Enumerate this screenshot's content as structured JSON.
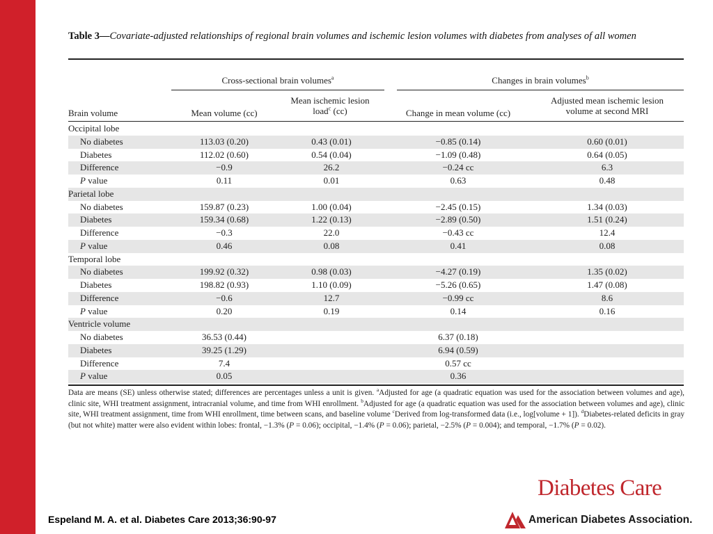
{
  "slide": {
    "accent_color": "#d0202a"
  },
  "table": {
    "title_lead": "Table 3",
    "title_dash": "—",
    "title_text": "Covariate-adjusted relationships of regional brain volumes and ischemic lesion volumes with diabetes from analyses of all women",
    "group_headers": {
      "cross_sectional": "Cross-sectional brain volumes",
      "cross_sectional_sup": "a",
      "changes": "Changes in brain volumes",
      "changes_sup": "b"
    },
    "column_headers": {
      "col1": "Brain volume",
      "col2": "Mean volume (cc)",
      "col3_line1": "Mean ischemic lesion",
      "col3_line2a": "load",
      "col3_sup": "c",
      "col3_line2b": " (cc)",
      "col4": "Change in mean volume (cc)",
      "col5_line1": "Adjusted mean ischemic lesion",
      "col5_line2": "volume at second MRI"
    },
    "rows": [
      {
        "label": "Occipital lobe",
        "section": true
      },
      {
        "label": "No diabetes",
        "c2": "113.03 (0.20)",
        "c3": "0.43 (0.01)",
        "c4": "−0.85 (0.14)",
        "c5": "0.60 (0.01)"
      },
      {
        "label": "Diabetes",
        "c2": "112.02 (0.60)",
        "c3": "0.54 (0.04)",
        "c4": "−1.09 (0.48)",
        "c5": "0.64 (0.05)"
      },
      {
        "label": "Difference",
        "c2": "−0.9",
        "c3": "26.2",
        "c4": "−0.24 cc",
        "c5": "6.3"
      },
      {
        "label": "value",
        "label_prefix": "P",
        "c2": "0.11",
        "c3": "0.01",
        "c4": "0.63",
        "c5": "0.48"
      },
      {
        "label": "Parietal lobe",
        "section": true
      },
      {
        "label": "No diabetes",
        "c2": "159.87 (0.23)",
        "c3": "1.00 (0.04)",
        "c4": "−2.45 (0.15)",
        "c5": "1.34 (0.03)"
      },
      {
        "label": "Diabetes",
        "c2": "159.34 (0.68)",
        "c3": "1.22 (0.13)",
        "c4": "−2.89 (0.50)",
        "c5": "1.51 (0.24)"
      },
      {
        "label": "Difference",
        "c2": "−0.3",
        "c3": "22.0",
        "c4": "−0.43 cc",
        "c5": "12.4"
      },
      {
        "label": "value",
        "label_prefix": "P",
        "c2": "0.46",
        "c3": "0.08",
        "c4": "0.41",
        "c5": "0.08"
      },
      {
        "label": "Temporal lobe",
        "section": true
      },
      {
        "label": "No diabetes",
        "c2": "199.92 (0.32)",
        "c3": "0.98 (0.03)",
        "c4": "−4.27 (0.19)",
        "c5": "1.35 (0.02)"
      },
      {
        "label": "Diabetes",
        "c2": "198.82 (0.93)",
        "c3": "1.10 (0.09)",
        "c4": "−5.26 (0.65)",
        "c5": "1.47 (0.08)"
      },
      {
        "label": "Difference",
        "c2": "−0.6",
        "c3": "12.7",
        "c4": "−0.99 cc",
        "c5": "8.6"
      },
      {
        "label": "value",
        "label_prefix": "P",
        "c2": "0.20",
        "c3": "0.19",
        "c4": "0.14",
        "c5": "0.16"
      },
      {
        "label": "Ventricle volume",
        "section": true
      },
      {
        "label": "No diabetes",
        "c2": "36.53 (0.44)",
        "c3": "",
        "c4": "6.37 (0.18)",
        "c5": ""
      },
      {
        "label": "Diabetes",
        "c2": "39.25 (1.29)",
        "c3": "",
        "c4": "6.94 (0.59)",
        "c5": ""
      },
      {
        "label": "Difference",
        "c2": "7.4",
        "c3": "",
        "c4": "0.57 cc",
        "c5": ""
      },
      {
        "label": "value",
        "label_prefix": "P",
        "c2": "0.05",
        "c3": "",
        "c4": "0.36",
        "c5": ""
      }
    ],
    "footnote": {
      "p1": "Data are means (SE) unless otherwise stated; differences are percentages unless a unit is given. ",
      "sup_a": "a",
      "p2": "Adjusted for age (a quadratic equation was used for the association between volumes and age), clinic site, WHI treatment assignment, intracranial volume, and time from WHI enrollment. ",
      "sup_b": "b",
      "p3": "Adjusted for age (a quadratic equation was used for the association between volumes and age), clinic site, WHI treatment assignment, time from WHI enrollment, time between scans, and baseline volume ",
      "sup_c": "c",
      "p4": "Derived from log-transformed data (i.e., log[volume + 1]). ",
      "sup_d": "d",
      "p5": "Diabetes-related deficits in gray (but not white) matter were also evident within lobes: frontal, −1.3% (",
      "p_italic": "P",
      "p6": " = 0.06); occipital, −1.4% (",
      "p7": " = 0.06); parietal, −2.5% (",
      "p8": " = 0.004); and temporal, −1.7% (",
      "p9": " = 0.02)."
    }
  },
  "citation": "Espeland M. A. et al. Diabetes Care 2013;36:90-97",
  "branding": {
    "journal": "Diabetes Care",
    "journal_color": "#c0272d",
    "association": "American Diabetes Association.",
    "logo_icon": "ada-triangle-logo"
  }
}
